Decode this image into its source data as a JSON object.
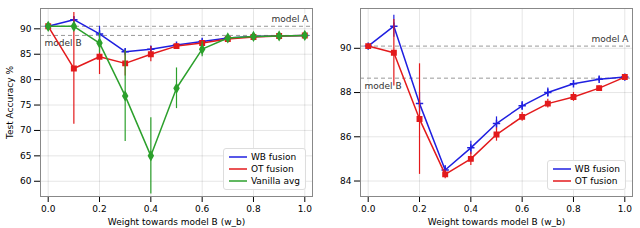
{
  "chart_data": [
    {
      "type": "line",
      "x_label": "Weight towards model B (w_b)",
      "y_label": "Test Accuracy %",
      "xlim": [
        -0.03,
        1.03
      ],
      "ylim": [
        57,
        94
      ],
      "xticks": [
        {
          "value": 0,
          "label": "0.0"
        },
        {
          "value": 0.2,
          "label": "0.2"
        },
        {
          "value": 0.4,
          "label": "0.4"
        },
        {
          "value": 0.6,
          "label": "0.6"
        },
        {
          "value": 0.8,
          "label": "0.8"
        },
        {
          "value": 1,
          "label": "1.0"
        }
      ],
      "yticks": [
        60,
        65,
        70,
        75,
        80,
        85,
        90
      ],
      "grid": true,
      "legend": "lower right",
      "x": [
        0,
        0.1,
        0.2,
        0.3,
        0.4,
        0.5,
        0.6,
        0.7,
        0.8,
        0.9,
        1.0
      ],
      "series": [
        {
          "name": "WB fusion",
          "color": "#1f1fe0",
          "marker": "plus",
          "values": [
            90.5,
            91.8,
            89.0,
            85.5,
            86.0,
            86.8,
            87.5,
            88.2,
            88.5,
            88.6,
            88.7
          ],
          "errors": [
            0,
            0.5,
            1.5,
            0.5,
            0.5,
            0.3,
            0.3,
            0.2,
            0.2,
            0.1,
            0
          ]
        },
        {
          "name": "OT fusion",
          "color": "#e31a1c",
          "marker": "square",
          "values": [
            90.5,
            82.2,
            84.5,
            83.2,
            85.0,
            86.6,
            87.2,
            88.0,
            88.4,
            88.6,
            88.7
          ],
          "errors": [
            0,
            11,
            3.5,
            2.5,
            1.5,
            0.5,
            0.4,
            0.3,
            0.2,
            0.1,
            0
          ]
        },
        {
          "name": "Vanilla avg",
          "color": "#2ca02c",
          "marker": "diamond",
          "values": [
            90.5,
            90.5,
            87.2,
            76.8,
            65.0,
            78.3,
            86.0,
            88.2,
            88.5,
            88.6,
            88.7
          ],
          "errors": [
            0,
            0.5,
            2,
            9,
            7.5,
            4,
            1.5,
            0.5,
            0.2,
            0.1,
            0
          ]
        }
      ],
      "reference_lines": [
        {
          "label": "model A",
          "value": 90.5
        },
        {
          "label": "model B",
          "value": 88.7
        }
      ]
    },
    {
      "type": "line",
      "x_label": "Weight towards model B (w_b)",
      "xlim": [
        -0.03,
        1.03
      ],
      "ylim": [
        83.3,
        91.8
      ],
      "xticks": [
        {
          "value": 0,
          "label": "0.0"
        },
        {
          "value": 0.2,
          "label": "0.2"
        },
        {
          "value": 0.4,
          "label": "0.4"
        },
        {
          "value": 0.6,
          "label": "0.6"
        },
        {
          "value": 0.8,
          "label": "0.8"
        },
        {
          "value": 1,
          "label": "1.0"
        }
      ],
      "yticks": [
        84,
        86,
        88,
        90
      ],
      "grid": true,
      "legend": "lower right",
      "x": [
        0,
        0.1,
        0.2,
        0.3,
        0.4,
        0.5,
        0.6,
        0.7,
        0.8,
        0.9,
        1.0
      ],
      "series": [
        {
          "name": "WB fusion",
          "color": "#1f1fe0",
          "marker": "plus",
          "values": [
            90.1,
            91.0,
            87.5,
            84.5,
            85.5,
            86.6,
            87.4,
            88.0,
            88.4,
            88.6,
            88.7
          ],
          "errors": [
            0,
            0.5,
            0.5,
            0.2,
            0.3,
            0.3,
            0.2,
            0.2,
            0.1,
            0.1,
            0
          ]
        },
        {
          "name": "OT fusion",
          "color": "#e31a1c",
          "marker": "square",
          "values": [
            90.1,
            89.8,
            86.8,
            84.3,
            85.0,
            86.1,
            86.9,
            87.5,
            87.8,
            88.2,
            88.7
          ],
          "errors": [
            0,
            1.5,
            2.5,
            0.2,
            0.3,
            0.3,
            0.2,
            0.2,
            0.2,
            0.1,
            0
          ]
        }
      ],
      "reference_lines": [
        {
          "label": "model A",
          "value": 90.1
        },
        {
          "label": "model B",
          "value": 88.65
        }
      ]
    }
  ]
}
